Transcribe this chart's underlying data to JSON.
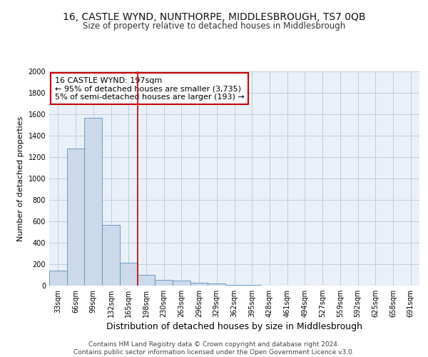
{
  "title": "16, CASTLE WYND, NUNTHORPE, MIDDLESBROUGH, TS7 0QB",
  "subtitle": "Size of property relative to detached houses in Middlesbrough",
  "xlabel": "Distribution of detached houses by size in Middlesbrough",
  "ylabel": "Number of detached properties",
  "categories": [
    "33sqm",
    "66sqm",
    "99sqm",
    "132sqm",
    "165sqm",
    "198sqm",
    "230sqm",
    "263sqm",
    "296sqm",
    "329sqm",
    "362sqm",
    "395sqm",
    "428sqm",
    "461sqm",
    "494sqm",
    "527sqm",
    "559sqm",
    "592sqm",
    "625sqm",
    "658sqm",
    "691sqm"
  ],
  "values": [
    140,
    1280,
    1570,
    570,
    215,
    100,
    55,
    50,
    25,
    20,
    10,
    5,
    2,
    1,
    0,
    0,
    0,
    0,
    0,
    0,
    0
  ],
  "bar_color": "#ccd9ea",
  "bar_edgecolor": "#5b8fc0",
  "vline_color": "#cc0000",
  "vline_index": 5,
  "annotation_text": "16 CASTLE WYND: 197sqm\n← 95% of detached houses are smaller (3,735)\n5% of semi-detached houses are larger (193) →",
  "annotation_box_edgecolor": "#cc0000",
  "ylim": [
    0,
    2000
  ],
  "yticks": [
    0,
    200,
    400,
    600,
    800,
    1000,
    1200,
    1400,
    1600,
    1800,
    2000
  ],
  "plot_bg": "#eaf0f8",
  "grid_color": "#c0ccd8",
  "footer": "Contains HM Land Registry data © Crown copyright and database right 2024.\nContains public sector information licensed under the Open Government Licence v3.0.",
  "title_fontsize": 10,
  "subtitle_fontsize": 8.5,
  "xlabel_fontsize": 9,
  "ylabel_fontsize": 8,
  "tick_fontsize": 7,
  "annotation_fontsize": 8,
  "footer_fontsize": 6.5
}
